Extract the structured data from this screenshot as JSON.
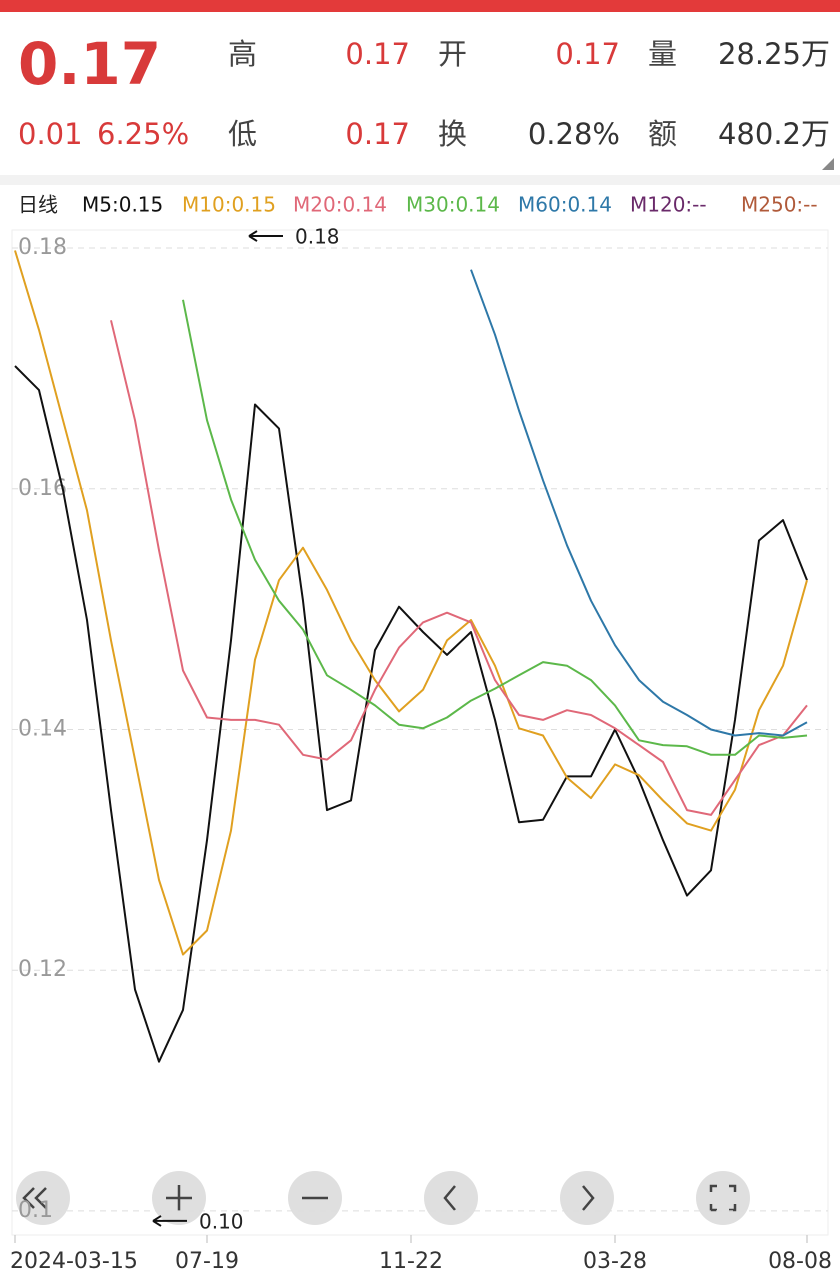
{
  "quote": {
    "price": "0.17",
    "change": "0.01",
    "change_pct": "6.25%",
    "fields": [
      {
        "label": "高",
        "value": "0.17"
      },
      {
        "label": "开",
        "value": "0.17"
      },
      {
        "label": "量",
        "value": "28.25万"
      },
      {
        "label": "低",
        "value": "0.17"
      },
      {
        "label": "换",
        "value": "0.28%"
      },
      {
        "label": "额",
        "value": "480.2万"
      }
    ]
  },
  "legend": {
    "period": "日线",
    "items": [
      {
        "text": "M5:0.15",
        "color": "#111111"
      },
      {
        "text": "M10:0.15",
        "color": "#e0a020"
      },
      {
        "text": "M20:0.14",
        "color": "#e06878"
      },
      {
        "text": "M30:0.14",
        "color": "#5cb84a"
      },
      {
        "text": "M60:0.14",
        "color": "#2e78a8"
      },
      {
        "text": "M120:--",
        "color": "#6a2a6a"
      },
      {
        "text": "M250:--",
        "color": "#b05a3a"
      }
    ]
  },
  "chart_data": {
    "type": "line",
    "x": [
      0,
      2,
      4,
      6,
      8,
      10,
      12,
      14,
      16,
      18,
      20,
      22,
      24,
      26,
      28,
      30,
      32,
      34,
      36,
      38,
      40,
      42,
      44,
      46,
      48,
      50,
      52,
      54,
      56,
      58,
      60,
      62,
      64,
      66
    ],
    "xlim": [
      -1,
      68
    ],
    "xticks": [
      {
        "value": 0,
        "label": "2024-03-15"
      },
      {
        "value": 16,
        "label": "07-19"
      },
      {
        "value": 33,
        "label": "11-22"
      },
      {
        "value": 50,
        "label": "03-28"
      },
      {
        "value": 66,
        "label": "08-08"
      }
    ],
    "ylim": [
      0.098,
      0.1815
    ],
    "yticks": [
      0.18,
      0.16,
      0.14,
      0.12,
      0.1
    ],
    "grid": true,
    "series": [
      {
        "name": "M5",
        "color": "#111111",
        "values": [
          0.1702,
          0.1682,
          0.1599,
          0.1491,
          0.1333,
          0.1184,
          0.1124,
          0.1167,
          0.1308,
          0.1474,
          0.167,
          0.165,
          0.1507,
          0.1333,
          0.1341,
          0.1466,
          0.1502,
          0.1481,
          0.1462,
          0.1481,
          0.1408,
          0.1323,
          0.1325,
          0.1361,
          0.1361,
          0.14,
          0.1358,
          0.1308,
          0.1262,
          0.1283,
          0.1408,
          0.1557,
          0.1574,
          0.1524
        ]
      },
      {
        "name": "M10",
        "color": "#e0a020",
        "values": [
          0.1798,
          0.1732,
          0.1657,
          0.1582,
          0.1474,
          0.1375,
          0.1275,
          0.1213,
          0.1233,
          0.1316,
          0.1458,
          0.1524,
          0.1551,
          0.1516,
          0.1474,
          0.1441,
          0.1415,
          0.1433,
          0.1474,
          0.1491,
          0.1453,
          0.1401,
          0.1395,
          0.136,
          0.1343,
          0.1371,
          0.1362,
          0.1341,
          0.1322,
          0.1316,
          0.135,
          0.1416,
          0.1453,
          0.1524
        ]
      },
      {
        "name": "M20",
        "color": "#e06878",
        "values": [
          null,
          null,
          null,
          null,
          0.174,
          0.1657,
          0.1549,
          0.1449,
          0.141,
          0.1408,
          0.1408,
          0.1404,
          0.1379,
          0.1375,
          0.1391,
          0.1433,
          0.1468,
          0.1489,
          0.1497,
          0.1489,
          0.1441,
          0.1412,
          0.1408,
          0.1416,
          0.1412,
          0.1401,
          0.1387,
          0.1373,
          0.1333,
          0.1329,
          0.1358,
          0.1387,
          0.1395,
          0.142
        ]
      },
      {
        "name": "M30",
        "color": "#5cb84a",
        "values": [
          null,
          null,
          null,
          null,
          null,
          null,
          null,
          0.1757,
          0.1657,
          0.1591,
          0.1541,
          0.1507,
          0.1483,
          0.1445,
          0.1433,
          0.142,
          0.1404,
          0.1401,
          0.141,
          0.1424,
          0.1434,
          0.1445,
          0.1456,
          0.1453,
          0.1441,
          0.142,
          0.1391,
          0.1387,
          0.1386,
          0.1379,
          0.1379,
          0.1395,
          0.1393,
          0.1395
        ]
      },
      {
        "name": "M60",
        "color": "#2e78a8",
        "values": [
          null,
          null,
          null,
          null,
          null,
          null,
          null,
          null,
          null,
          null,
          null,
          null,
          null,
          null,
          null,
          null,
          null,
          null,
          null,
          0.1782,
          0.1728,
          0.1665,
          0.1607,
          0.1553,
          0.1507,
          0.147,
          0.1441,
          0.1423,
          0.1412,
          0.14,
          0.1395,
          0.1397,
          0.1395,
          0.1406
        ]
      }
    ],
    "annotations": [
      {
        "text": "0.18",
        "x": 19,
        "y": 0.18
      },
      {
        "text": "0.10",
        "x": 11,
        "y": 0.1
      }
    ]
  }
}
